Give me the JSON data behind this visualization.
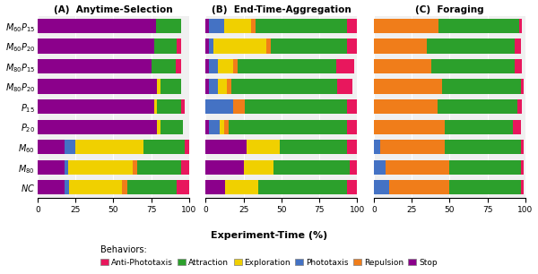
{
  "categories": [
    "$M_{60}P_{15}$",
    "$M_{60}P_{20}$",
    "$M_{80}P_{15}$",
    "$M_{80}P_{20}$",
    "$P_{15}$",
    "$P_{20}$",
    "$M_{60}$",
    "$M_{80}$",
    "$NC$"
  ],
  "behaviors": [
    "Anti-Phototaxis",
    "Attraction",
    "Exploration",
    "Phototaxis",
    "Repulsion",
    "Stop"
  ],
  "colors": {
    "Anti-Phototaxis": "#e8175d",
    "Attraction": "#2ca02c",
    "Exploration": "#f0d000",
    "Phototaxis": "#4472c4",
    "Repulsion": "#f07d1a",
    "Stop": "#8b008b"
  },
  "panel_A": {
    "title": "(A)  Anytime-Selection",
    "data": [
      {
        "Stop": 78,
        "Phototaxis": 0,
        "Exploration": 0,
        "Repulsion": 0,
        "Attraction": 17,
        "Anti-Phototaxis": 0
      },
      {
        "Stop": 77,
        "Phototaxis": 0,
        "Exploration": 0,
        "Repulsion": 0,
        "Attraction": 15,
        "Anti-Phototaxis": 3
      },
      {
        "Stop": 75,
        "Phototaxis": 0,
        "Exploration": 0,
        "Repulsion": 0,
        "Attraction": 16,
        "Anti-Phototaxis": 4
      },
      {
        "Stop": 79,
        "Phototaxis": 0,
        "Exploration": 2,
        "Repulsion": 0,
        "Attraction": 14,
        "Anti-Phototaxis": 0
      },
      {
        "Stop": 77,
        "Phototaxis": 0,
        "Exploration": 2,
        "Repulsion": 0,
        "Attraction": 16,
        "Anti-Phototaxis": 2
      },
      {
        "Stop": 79,
        "Phototaxis": 0,
        "Exploration": 2,
        "Repulsion": 0,
        "Attraction": 15,
        "Anti-Phototaxis": 0
      },
      {
        "Stop": 18,
        "Phototaxis": 7,
        "Exploration": 45,
        "Repulsion": 0,
        "Attraction": 27,
        "Anti-Phototaxis": 3
      },
      {
        "Stop": 18,
        "Phototaxis": 2,
        "Exploration": 43,
        "Repulsion": 3,
        "Attraction": 29,
        "Anti-Phototaxis": 5
      },
      {
        "Stop": 18,
        "Phototaxis": 3,
        "Exploration": 35,
        "Repulsion": 3,
        "Attraction": 33,
        "Anti-Phototaxis": 8
      }
    ]
  },
  "panel_B": {
    "title": "(B)  End-Time-Aggregation",
    "data": [
      {
        "Stop": 2,
        "Phototaxis": 10,
        "Exploration": 18,
        "Repulsion": 3,
        "Attraction": 60,
        "Anti-Phototaxis": 7
      },
      {
        "Stop": 2,
        "Phototaxis": 3,
        "Exploration": 35,
        "Repulsion": 3,
        "Attraction": 50,
        "Anti-Phototaxis": 7
      },
      {
        "Stop": 2,
        "Phototaxis": 6,
        "Exploration": 10,
        "Repulsion": 3,
        "Attraction": 65,
        "Anti-Phototaxis": 12
      },
      {
        "Stop": 2,
        "Phototaxis": 6,
        "Exploration": 6,
        "Repulsion": 3,
        "Attraction": 70,
        "Anti-Phototaxis": 10
      },
      {
        "Stop": 0,
        "Phototaxis": 18,
        "Exploration": 0,
        "Repulsion": 8,
        "Attraction": 67,
        "Anti-Phototaxis": 7
      },
      {
        "Stop": 2,
        "Phototaxis": 7,
        "Exploration": 3,
        "Repulsion": 3,
        "Attraction": 78,
        "Anti-Phototaxis": 7
      },
      {
        "Stop": 27,
        "Phototaxis": 0,
        "Exploration": 22,
        "Repulsion": 0,
        "Attraction": 44,
        "Anti-Phototaxis": 7
      },
      {
        "Stop": 25,
        "Phototaxis": 0,
        "Exploration": 20,
        "Repulsion": 0,
        "Attraction": 50,
        "Anti-Phototaxis": 5
      },
      {
        "Stop": 13,
        "Phototaxis": 0,
        "Exploration": 22,
        "Repulsion": 0,
        "Attraction": 58,
        "Anti-Phototaxis": 7
      }
    ]
  },
  "panel_C": {
    "title": "(C)  Foraging",
    "data": [
      {
        "Stop": 0,
        "Phototaxis": 0,
        "Exploration": 0,
        "Repulsion": 43,
        "Attraction": 53,
        "Anti-Phototaxis": 2
      },
      {
        "Stop": 0,
        "Phototaxis": 0,
        "Exploration": 0,
        "Repulsion": 35,
        "Attraction": 58,
        "Anti-Phototaxis": 4
      },
      {
        "Stop": 0,
        "Phototaxis": 0,
        "Exploration": 0,
        "Repulsion": 38,
        "Attraction": 55,
        "Anti-Phototaxis": 5
      },
      {
        "Stop": 0,
        "Phototaxis": 0,
        "Exploration": 0,
        "Repulsion": 45,
        "Attraction": 52,
        "Anti-Phototaxis": 2
      },
      {
        "Stop": 0,
        "Phototaxis": 0,
        "Exploration": 0,
        "Repulsion": 42,
        "Attraction": 53,
        "Anti-Phototaxis": 3
      },
      {
        "Stop": 0,
        "Phototaxis": 0,
        "Exploration": 0,
        "Repulsion": 47,
        "Attraction": 45,
        "Anti-Phototaxis": 5
      },
      {
        "Stop": 0,
        "Phototaxis": 4,
        "Exploration": 0,
        "Repulsion": 43,
        "Attraction": 50,
        "Anti-Phototaxis": 2
      },
      {
        "Stop": 0,
        "Phototaxis": 8,
        "Exploration": 0,
        "Repulsion": 42,
        "Attraction": 47,
        "Anti-Phototaxis": 2
      },
      {
        "Stop": 0,
        "Phototaxis": 10,
        "Exploration": 0,
        "Repulsion": 40,
        "Attraction": 47,
        "Anti-Phototaxis": 2
      }
    ]
  },
  "behavior_order": [
    "Stop",
    "Phototaxis",
    "Exploration",
    "Repulsion",
    "Attraction",
    "Anti-Phototaxis"
  ],
  "xlabel": "Experiment-Time (%)",
  "xticks": [
    0,
    25,
    50,
    75,
    100
  ],
  "figsize": [
    6.0,
    3.06
  ],
  "dpi": 100
}
